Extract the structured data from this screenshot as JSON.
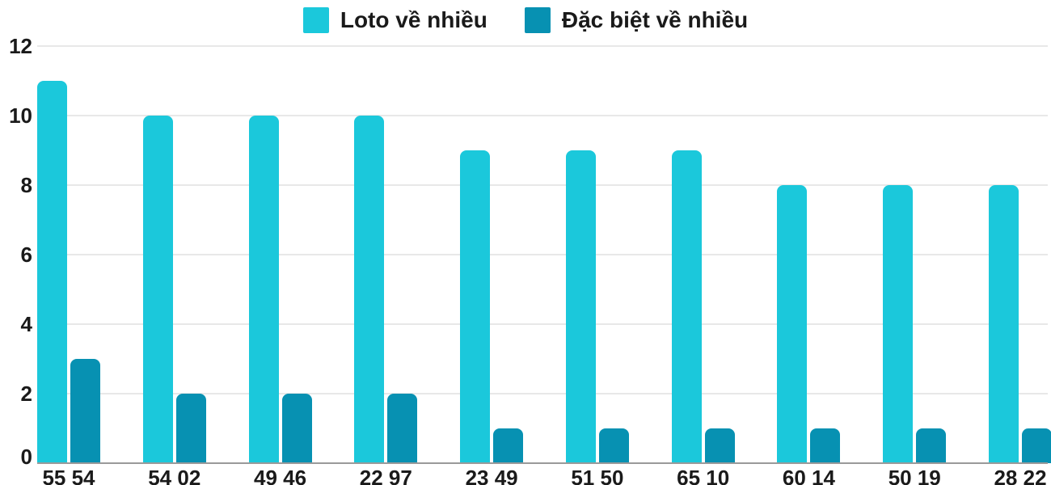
{
  "chart_data": {
    "type": "bar",
    "title": "",
    "xlabel": "",
    "ylabel": "",
    "categories": [
      "55 54",
      "54 02",
      "49 46",
      "22 97",
      "23 49",
      "51 50",
      "65 10",
      "60 14",
      "50 19",
      "28 22"
    ],
    "series": [
      {
        "name": "Loto về nhiều",
        "color": "#1bc8db",
        "values": [
          11,
          10,
          10,
          10,
          9,
          9,
          9,
          8,
          8,
          8
        ]
      },
      {
        "name": "Đặc biệt về nhiều",
        "color": "#0791b2",
        "values": [
          3,
          2,
          2,
          2,
          1,
          1,
          1,
          1,
          1,
          1
        ]
      }
    ],
    "ylim": [
      0,
      12
    ],
    "yticks": [
      0,
      2,
      4,
      6,
      8,
      10,
      12
    ],
    "grid": true,
    "legend_position": "top",
    "colors": {
      "grid": "#e8e8e8",
      "axis": "#9a9a9a",
      "text": "#1a1a1a",
      "background": "#ffffff"
    }
  }
}
